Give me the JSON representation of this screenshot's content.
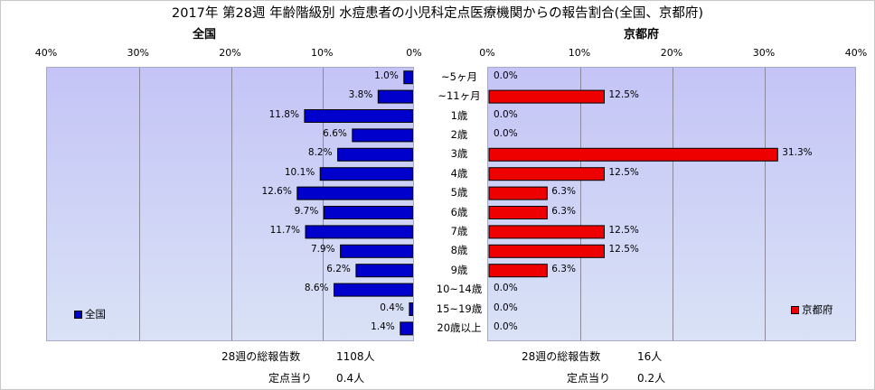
{
  "chart_data": [
    {
      "type": "bar",
      "title": "2017年 第28週 年齢階級別 水痘患者の小児科定点医療機関からの報告割合(全国、京都府)",
      "subtitle": "全国",
      "orientation": "horizontal-reversed",
      "categories": [
        "~5ヶ月",
        "~11ヶ月",
        "1歳",
        "2歳",
        "3歳",
        "4歳",
        "5歳",
        "6歳",
        "7歳",
        "8歳",
        "9歳",
        "10~14歳",
        "15~19歳",
        "20歳以上"
      ],
      "series": [
        {
          "name": "全国",
          "color": "#0000cc",
          "values": [
            1.0,
            3.8,
            11.8,
            6.6,
            8.2,
            10.1,
            12.6,
            9.7,
            11.7,
            7.9,
            6.2,
            8.6,
            0.4,
            1.4
          ]
        }
      ],
      "data_labels": [
        "1.0%",
        "3.8%",
        "11.8%",
        "6.6%",
        "8.2%",
        "10.1%",
        "12.6%",
        "9.7%",
        "11.7%",
        "7.9%",
        "6.2%",
        "8.6%",
        "0.4%",
        "1.4%"
      ],
      "xlim": [
        0,
        40
      ],
      "xticks": [
        "40%",
        "30%",
        "20%",
        "10%",
        "0%"
      ],
      "grid": true,
      "legend": "bottom-left"
    },
    {
      "type": "bar",
      "subtitle": "京都府",
      "orientation": "horizontal",
      "categories": [
        "~5ヶ月",
        "~11ヶ月",
        "1歳",
        "2歳",
        "3歳",
        "4歳",
        "5歳",
        "6歳",
        "7歳",
        "8歳",
        "9歳",
        "10~14歳",
        "15~19歳",
        "20歳以上"
      ],
      "series": [
        {
          "name": "京都府",
          "color": "#ee0000",
          "values": [
            0.0,
            12.5,
            0.0,
            0.0,
            31.3,
            12.5,
            6.3,
            6.3,
            12.5,
            12.5,
            6.3,
            0.0,
            0.0,
            0.0
          ]
        }
      ],
      "data_labels": [
        "0.0%",
        "12.5%",
        "0.0%",
        "0.0%",
        "31.3%",
        "12.5%",
        "6.3%",
        "6.3%",
        "12.5%",
        "12.5%",
        "6.3%",
        "0.0%",
        "0.0%",
        "0.0%"
      ],
      "xlim": [
        0,
        40
      ],
      "xticks": [
        "0%",
        "10%",
        "20%",
        "30%",
        "40%"
      ],
      "grid": true,
      "legend": "bottom-right"
    }
  ],
  "categories_display": [
    "~5ヶ月",
    "~11ヶ月",
    "1歳",
    "2歳",
    "3歳",
    "4歳",
    "5歳",
    "6歳",
    "7歳",
    "8歳",
    "9歳",
    "10~14歳",
    "15~19歳",
    "20歳以上"
  ],
  "footer": {
    "national_total_label": "28週の総報告数",
    "national_total_value": "1108人",
    "national_per_label": "定点当り",
    "national_per_value": "0.4人",
    "kyoto_total_label": "28週の総報告数",
    "kyoto_total_value": "16人",
    "kyoto_per_label": "定点当り",
    "kyoto_per_value": "0.2人"
  }
}
